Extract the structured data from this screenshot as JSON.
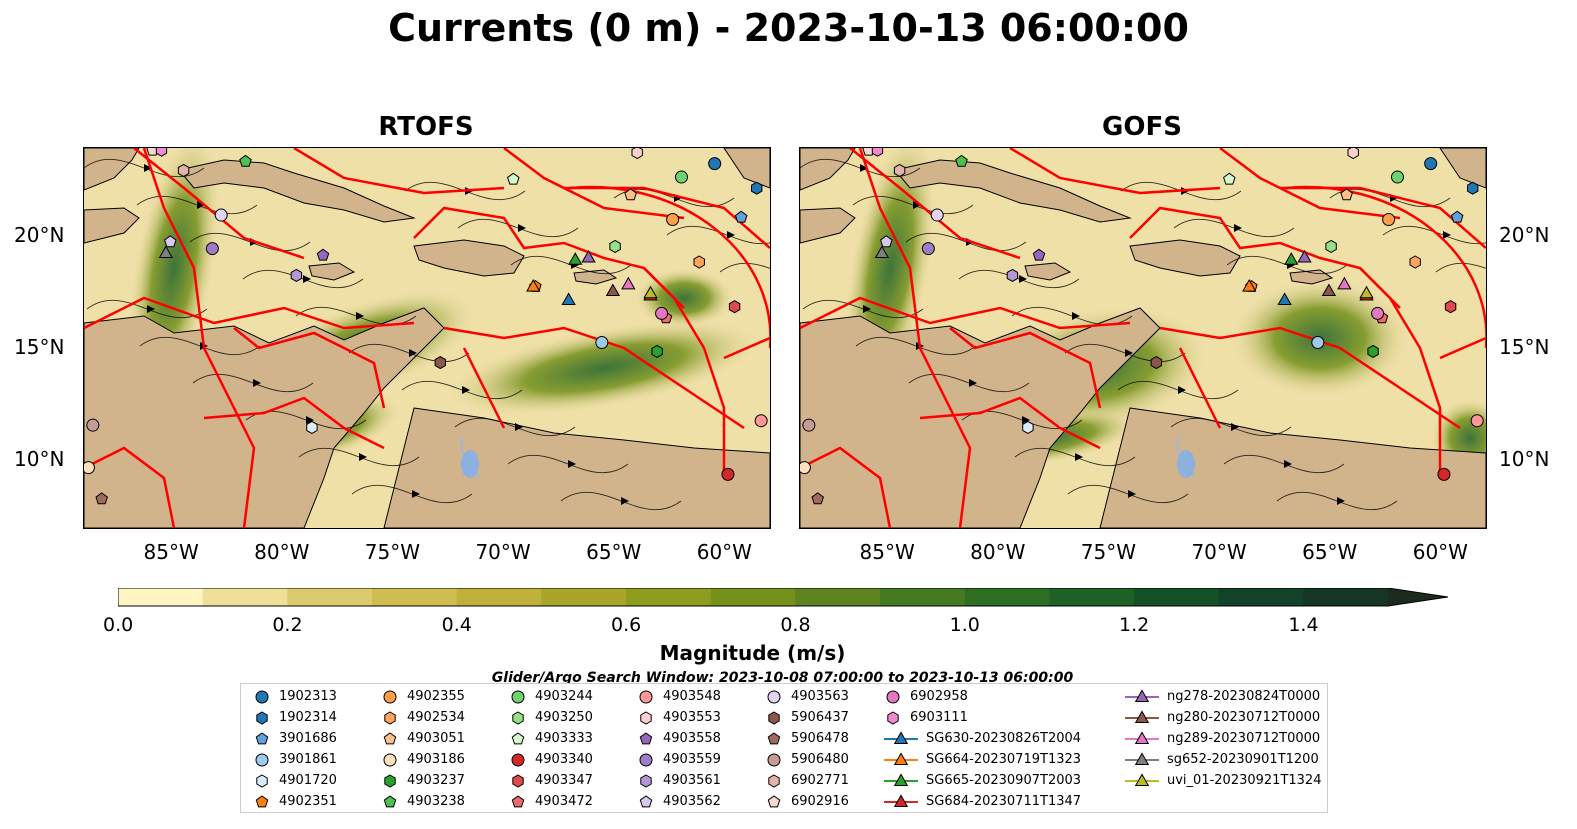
{
  "title": "Currents (0 m) - 2023-10-13 06:00:00",
  "panels": [
    {
      "title": "RTOFS"
    },
    {
      "title": "GOFS"
    }
  ],
  "axes": {
    "lon_labels": [
      "85°W",
      "80°W",
      "75°W",
      "70°W",
      "65°W",
      "60°W"
    ],
    "lat_labels": [
      "20°N",
      "15°N",
      "10°N"
    ],
    "lon_range": [
      -89,
      -58
    ],
    "lat_range": [
      7,
      24
    ]
  },
  "colorbar": {
    "title": "Magnitude (m/s)",
    "tick_labels": [
      "0.0",
      "0.2",
      "0.4",
      "0.6",
      "0.8",
      "1.0",
      "1.2",
      "1.4"
    ],
    "range": [
      0,
      1.5
    ],
    "extend": "max",
    "colors": [
      "#fdf6c3",
      "#efdf98",
      "#dccb6e",
      "#cfbd52",
      "#bfb13b",
      "#a8a52a",
      "#8e9c20",
      "#75911c",
      "#5d8420",
      "#467a22",
      "#2e6e23",
      "#1f6027",
      "#155127",
      "#12432a",
      "#153624",
      "#1b2b1c"
    ]
  },
  "search_window": "Glider/Argo Search Window: 2023-10-08 07:00:00 to 2023-10-13 06:00:00",
  "legend": {
    "columns": [
      [
        {
          "label": "1902313",
          "marker": "circle",
          "color": "#1f77b4"
        },
        {
          "label": "1902314",
          "marker": "hexagon",
          "color": "#1f77b4"
        },
        {
          "label": "3901686",
          "marker": "pentagon",
          "color": "#5fa2dd"
        },
        {
          "label": "3901861",
          "marker": "circle",
          "color": "#9ecae9"
        },
        {
          "label": "4901720",
          "marker": "hexagon",
          "color": "#d9ecfa"
        },
        {
          "label": "4902351",
          "marker": "pentagon",
          "color": "#ff7f0e"
        }
      ],
      [
        {
          "label": "4902355",
          "marker": "circle",
          "color": "#ff9f4a"
        },
        {
          "label": "4902534",
          "marker": "hexagon",
          "color": "#ffa45c"
        },
        {
          "label": "4903051",
          "marker": "pentagon",
          "color": "#ffc08c"
        },
        {
          "label": "4903186",
          "marker": "circle",
          "color": "#ffe0bd"
        },
        {
          "label": "4903237",
          "marker": "hexagon",
          "color": "#2ca02c"
        },
        {
          "label": "4903238",
          "marker": "pentagon",
          "color": "#4fbf4f"
        }
      ],
      [
        {
          "label": "4903244",
          "marker": "circle",
          "color": "#6fd26f"
        },
        {
          "label": "4903250",
          "marker": "hexagon",
          "color": "#98df8a"
        },
        {
          "label": "4903333",
          "marker": "pentagon",
          "color": "#d4f7cc"
        },
        {
          "label": "4903340",
          "marker": "circle",
          "color": "#d62728"
        },
        {
          "label": "4903347",
          "marker": "hexagon",
          "color": "#e04a4b"
        },
        {
          "label": "4903472",
          "marker": "pentagon",
          "color": "#f06a6a"
        }
      ],
      [
        {
          "label": "4903548",
          "marker": "circle",
          "color": "#ff9896"
        },
        {
          "label": "4903553",
          "marker": "hexagon",
          "color": "#ffd0cf"
        },
        {
          "label": "4903558",
          "marker": "pentagon",
          "color": "#9467bd"
        },
        {
          "label": "4903559",
          "marker": "circle",
          "color": "#a07cc8"
        },
        {
          "label": "4903561",
          "marker": "hexagon",
          "color": "#b497d6"
        },
        {
          "label": "4903562",
          "marker": "pentagon",
          "color": "#d8c8ef"
        }
      ],
      [
        {
          "label": "4903563",
          "marker": "circle",
          "color": "#e3d4f5"
        },
        {
          "label": "5906437",
          "marker": "hexagon",
          "color": "#8c564b"
        },
        {
          "label": "5906478",
          "marker": "pentagon",
          "color": "#a06a5e"
        },
        {
          "label": "5906480",
          "marker": "circle",
          "color": "#c49c94"
        },
        {
          "label": "6902771",
          "marker": "hexagon",
          "color": "#e2b3a8"
        },
        {
          "label": "6902916",
          "marker": "pentagon",
          "color": "#f7d8d0"
        }
      ],
      [
        {
          "label": "6902958",
          "marker": "circle",
          "color": "#e377c2"
        },
        {
          "label": "6903111",
          "marker": "hexagon",
          "color": "#f08ad3"
        },
        {
          "label": "SG630-20230826T2004",
          "marker": "triangle-line",
          "color": "#1f77b4"
        },
        {
          "label": "SG664-20230719T1323",
          "marker": "triangle-line",
          "color": "#ff7f0e"
        },
        {
          "label": "SG665-20230907T2003",
          "marker": "triangle-line",
          "color": "#2ca02c"
        },
        {
          "label": "SG684-20230711T1347",
          "marker": "triangle-line",
          "color": "#d62728"
        }
      ],
      [
        {
          "label": "ng278-20230824T0000",
          "marker": "triangle-line",
          "color": "#9467bd"
        },
        {
          "label": "ng280-20230712T0000",
          "marker": "triangle-line",
          "color": "#8c564b"
        },
        {
          "label": "ng289-20230712T0000",
          "marker": "triangle-line",
          "color": "#e377c2"
        },
        {
          "label": "sg652-20230901T1200",
          "marker": "triangle-line",
          "color": "#7f7f7f"
        },
        {
          "label": "uvi_01-20230921T1324",
          "marker": "triangle-line",
          "color": "#bcbd22"
        }
      ]
    ]
  },
  "platforms": [
    {
      "id": "1902313",
      "lon": -60.5,
      "lat": 23.3
    },
    {
      "id": "1902314",
      "lon": -58.6,
      "lat": 22.2
    },
    {
      "id": "3901686",
      "lon": -59.3,
      "lat": 20.9
    },
    {
      "id": "3901861",
      "lon": -65.6,
      "lat": 15.3
    },
    {
      "id": "4901720",
      "lon": -78.7,
      "lat": 11.5
    },
    {
      "id": "4902351",
      "lon": -68.6,
      "lat": 17.8
    },
    {
      "id": "4902355",
      "lon": -62.4,
      "lat": 20.8
    },
    {
      "id": "4902534",
      "lon": -61.2,
      "lat": 18.9
    },
    {
      "id": "4903051",
      "lon": -64.3,
      "lat": 21.9
    },
    {
      "id": "4903186",
      "lon": -88.8,
      "lat": 9.7
    },
    {
      "id": "4903237",
      "lon": -63.1,
      "lat": 14.9
    },
    {
      "id": "4903238",
      "lon": -81.7,
      "lat": 23.4
    },
    {
      "id": "4903244",
      "lon": -62.0,
      "lat": 22.7
    },
    {
      "id": "4903250",
      "lon": -65.0,
      "lat": 19.6
    },
    {
      "id": "4903333",
      "lon": -69.6,
      "lat": 22.6
    },
    {
      "id": "4903340",
      "lon": -59.9,
      "lat": 9.4
    },
    {
      "id": "4903347",
      "lon": -59.6,
      "lat": 16.9
    },
    {
      "id": "4903472",
      "lon": -62.7,
      "lat": 16.4
    },
    {
      "id": "4903548",
      "lon": -58.4,
      "lat": 11.8
    },
    {
      "id": "4903553",
      "lon": -64.0,
      "lat": 23.8
    },
    {
      "id": "4903558",
      "lon": -78.2,
      "lat": 19.2
    },
    {
      "id": "4903559",
      "lon": -83.2,
      "lat": 19.5
    },
    {
      "id": "4903561",
      "lon": -79.4,
      "lat": 18.3
    },
    {
      "id": "4903562",
      "lon": -85.1,
      "lat": 19.8
    },
    {
      "id": "4903563",
      "lon": -82.8,
      "lat": 21.0
    },
    {
      "id": "5906437",
      "lon": -72.9,
      "lat": 14.4
    },
    {
      "id": "5906478",
      "lon": -88.2,
      "lat": 8.3
    },
    {
      "id": "5906480",
      "lon": -88.6,
      "lat": 11.6
    },
    {
      "id": "6902771",
      "lon": -84.5,
      "lat": 23.0
    },
    {
      "id": "6902916",
      "lon": -85.9,
      "lat": 23.9
    },
    {
      "id": "6902958",
      "lon": -62.9,
      "lat": 16.6
    },
    {
      "id": "6903111",
      "lon": -85.5,
      "lat": 23.9
    },
    {
      "id": "SG630-20230826T2004",
      "lon": -67.1,
      "lat": 17.2
    },
    {
      "id": "SG664-20230719T1323",
      "lon": -68.7,
      "lat": 17.8
    },
    {
      "id": "SG665-20230907T2003",
      "lon": -66.8,
      "lat": 19.0
    },
    {
      "id": "SG684-20230711T1347",
      "lon": -63.4,
      "lat": 17.4
    },
    {
      "id": "ng278-20230824T0000",
      "lon": -66.2,
      "lat": 19.1
    },
    {
      "id": "ng280-20230712T0000",
      "lon": -65.1,
      "lat": 17.6
    },
    {
      "id": "ng289-20230712T0000",
      "lon": -64.4,
      "lat": 17.9
    },
    {
      "id": "sg652-20230901T1200",
      "lon": -85.3,
      "lat": 19.3
    },
    {
      "id": "uvi_01-20230921T1324",
      "lon": -63.4,
      "lat": 17.5
    }
  ]
}
